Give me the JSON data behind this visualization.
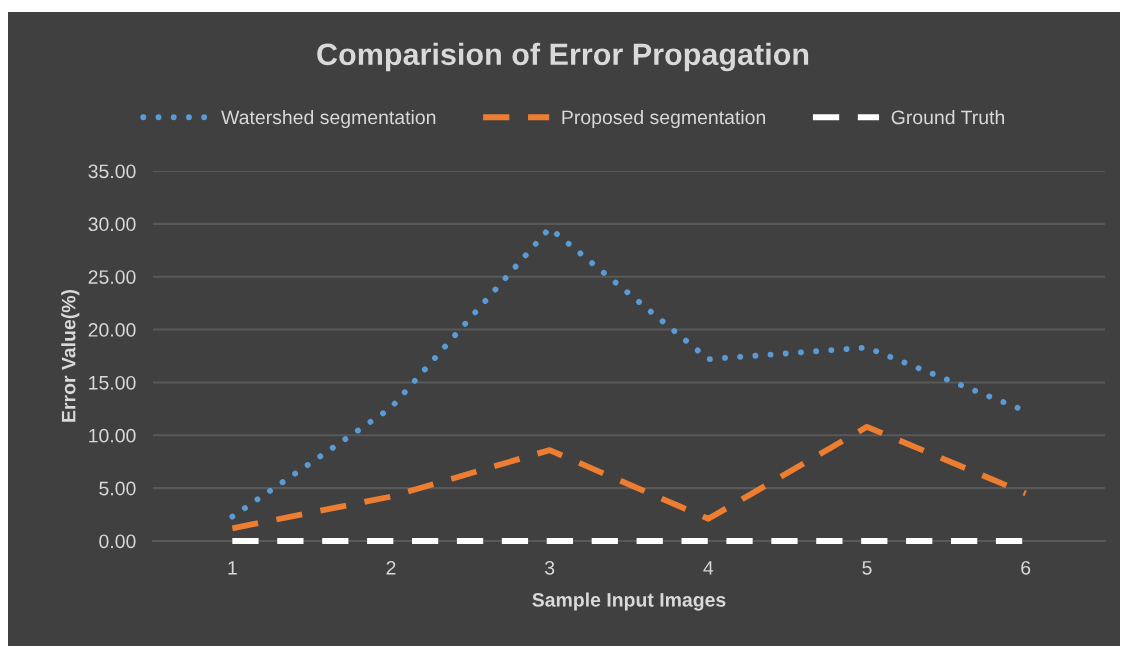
{
  "chart_data": {
    "type": "line",
    "title": "Comparision of Error Propagation",
    "xlabel": "Sample Input Images",
    "ylabel": "Error Value(%)",
    "categories": [
      "1",
      "2",
      "3",
      "4",
      "5",
      "6"
    ],
    "series": [
      {
        "name": "Watershed segmentation",
        "color": "#5b9bd5",
        "line_style": "dotted",
        "values": [
          2.3,
          12.6,
          29.6,
          17.2,
          18.3,
          12.3
        ]
      },
      {
        "name": "Proposed segmentation",
        "color": "#ed7d31",
        "line_style": "dashed",
        "values": [
          1.2,
          4.2,
          8.6,
          2.1,
          10.8,
          4.5
        ]
      },
      {
        "name": "Ground Truth",
        "color": "#ffffff",
        "line_style": "dashed",
        "values": [
          0,
          0,
          0,
          0,
          0,
          0
        ]
      }
    ],
    "ylim": [
      0,
      35
    ],
    "yticks": [
      {
        "value": 0,
        "label": "0.00"
      },
      {
        "value": 5,
        "label": "5.00"
      },
      {
        "value": 10,
        "label": "10.00"
      },
      {
        "value": 15,
        "label": "15.00"
      },
      {
        "value": 20,
        "label": "20.00"
      },
      {
        "value": 25,
        "label": "25.00"
      },
      {
        "value": 30,
        "label": "30.00"
      },
      {
        "value": 35,
        "label": "35.00"
      }
    ],
    "grid": "y",
    "legend": "top",
    "marker": "none"
  }
}
